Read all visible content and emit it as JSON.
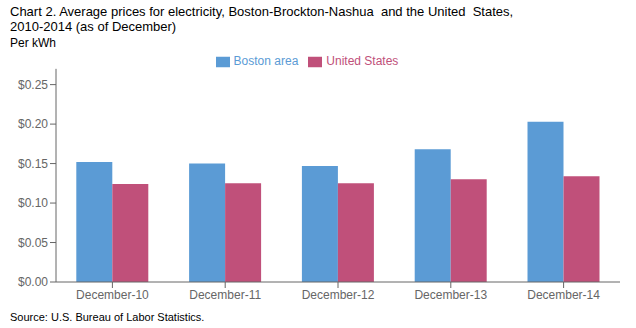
{
  "chart_data": {
    "type": "bar",
    "title": "Chart 2. Average prices for electricity, Boston-Brockton-Nashua  and the United  States,",
    "subtitle": "2010-2014 (as of December)",
    "y_label": "Per kWh",
    "annotations": [
      "Source: U.S. Bureau of Labor Statistics."
    ],
    "categories": [
      "December-10",
      "December-11",
      "December-12",
      "December-13",
      "December-14"
    ],
    "series": [
      {
        "name": "Boston area",
        "color": "#5B9BD5",
        "values": [
          0.152,
          0.15,
          0.147,
          0.168,
          0.203
        ]
      },
      {
        "name": "United States",
        "color": "#C0507A",
        "values": [
          0.124,
          0.125,
          0.125,
          0.13,
          0.134
        ]
      }
    ],
    "ylim": [
      0,
      0.27
    ],
    "yticks": [
      {
        "value": 0.0,
        "label": "$0.00"
      },
      {
        "value": 0.05,
        "label": "$0.05"
      },
      {
        "value": 0.1,
        "label": "$0.10"
      },
      {
        "value": 0.15,
        "label": "$0.15"
      },
      {
        "value": 0.2,
        "label": "$0.20"
      },
      {
        "value": 0.25,
        "label": "$0.25"
      }
    ],
    "grid": false,
    "legend": "top"
  }
}
